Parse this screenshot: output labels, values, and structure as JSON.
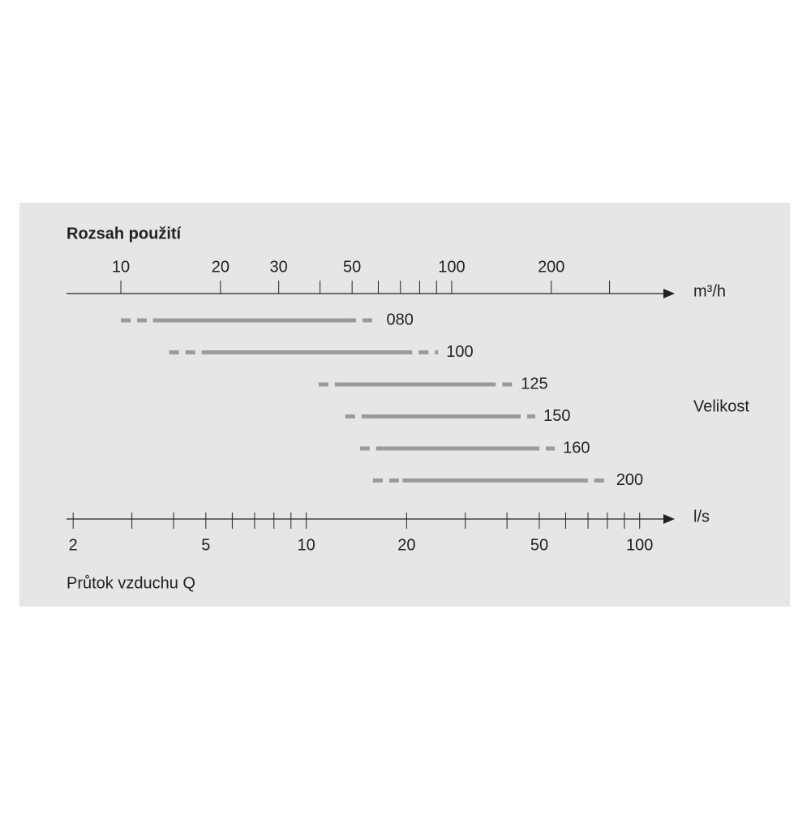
{
  "chart_data": {
    "type": "range",
    "title": "Rozsah použití",
    "x_unit": "m³/h",
    "x2_unit": "l/s",
    "xlabel": "Průtok vzduchu Q",
    "legend_title": "Velikost",
    "log_scale": true,
    "color": "#9b9b9b",
    "xlim": [
      6.85,
      467
    ],
    "xticks": [
      10,
      20,
      30,
      50,
      100,
      200
    ],
    "xminorticks": [
      40,
      60,
      70,
      80,
      90,
      300
    ],
    "x2lim": [
      1.91,
      126
    ],
    "x2ticks": [
      2,
      5,
      10,
      20,
      50,
      100
    ],
    "x2minorticks": [
      3,
      4,
      6,
      7,
      8,
      9,
      30,
      40,
      60,
      70,
      80,
      90
    ],
    "series": [
      {
        "name": "080",
        "values": [
          10,
          12.5,
          48,
          60
        ]
      },
      {
        "name": "100",
        "values": [
          14,
          17.7,
          71,
          91
        ]
      },
      {
        "name": "125",
        "values": [
          39.6,
          46.7,
          127,
          153
        ]
      },
      {
        "name": "150",
        "values": [
          47.7,
          56,
          151,
          179
        ]
      },
      {
        "name": "160",
        "values": [
          52.8,
          62,
          172,
          205
        ]
      },
      {
        "name": "200",
        "values": [
          57.8,
          71,
          241,
          297
        ]
      }
    ]
  }
}
